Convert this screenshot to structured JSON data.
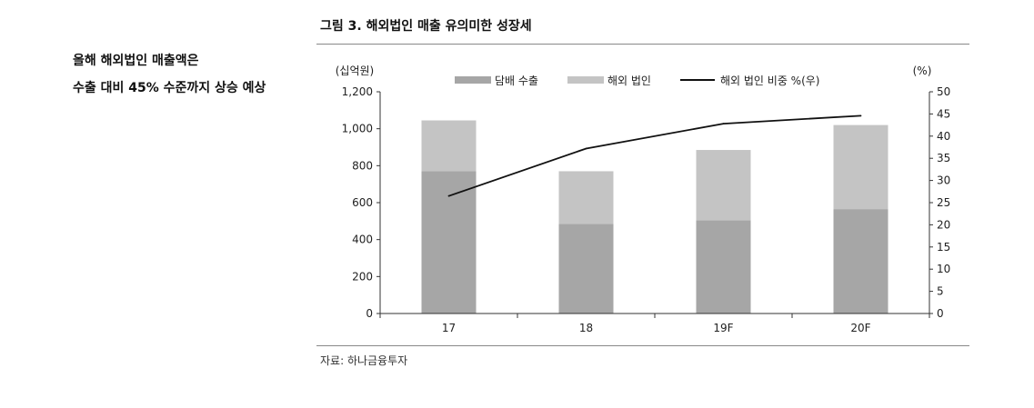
{
  "side_note": {
    "line1": "올해 해외법인 매출액은",
    "line2": "수출 대비 45% 수준까지 상승 예상"
  },
  "figure": {
    "title": "그림 3. 해외법인 매출 유의미한 성장세",
    "source": "자료: 하나금융투자"
  },
  "colors": {
    "export": "#a6a6a6",
    "overseas": "#c4c4c4",
    "line": "#111111"
  },
  "chart_data": {
    "type": "bar",
    "stacked": true,
    "categories": [
      "17",
      "18",
      "19F",
      "20F"
    ],
    "series": [
      {
        "name": "담배 수출",
        "values": [
          770,
          485,
          505,
          565
        ]
      },
      {
        "name": "해외 법인",
        "values": [
          275,
          285,
          380,
          455
        ]
      }
    ],
    "line_series": {
      "name": "해외 법인 비중 %(우)",
      "values": [
        26.5,
        37.2,
        42.8,
        44.6
      ],
      "axis": "right"
    },
    "ylabel_left": "(십억원)",
    "ylabel_right": "(%)",
    "ylim_left": [
      0,
      1200
    ],
    "ylim_right": [
      0,
      50
    ],
    "yticks_left": [
      "0",
      "200",
      "400",
      "600",
      "800",
      "1,000",
      "1,200"
    ],
    "yticks_right": [
      "0",
      "5",
      "10",
      "15",
      "20",
      "25",
      "30",
      "35",
      "40",
      "45",
      "50"
    ],
    "legend": [
      "담배 수출",
      "해외 법인",
      "해외 법인 비중 %(우)"
    ],
    "legend_position": "top"
  }
}
